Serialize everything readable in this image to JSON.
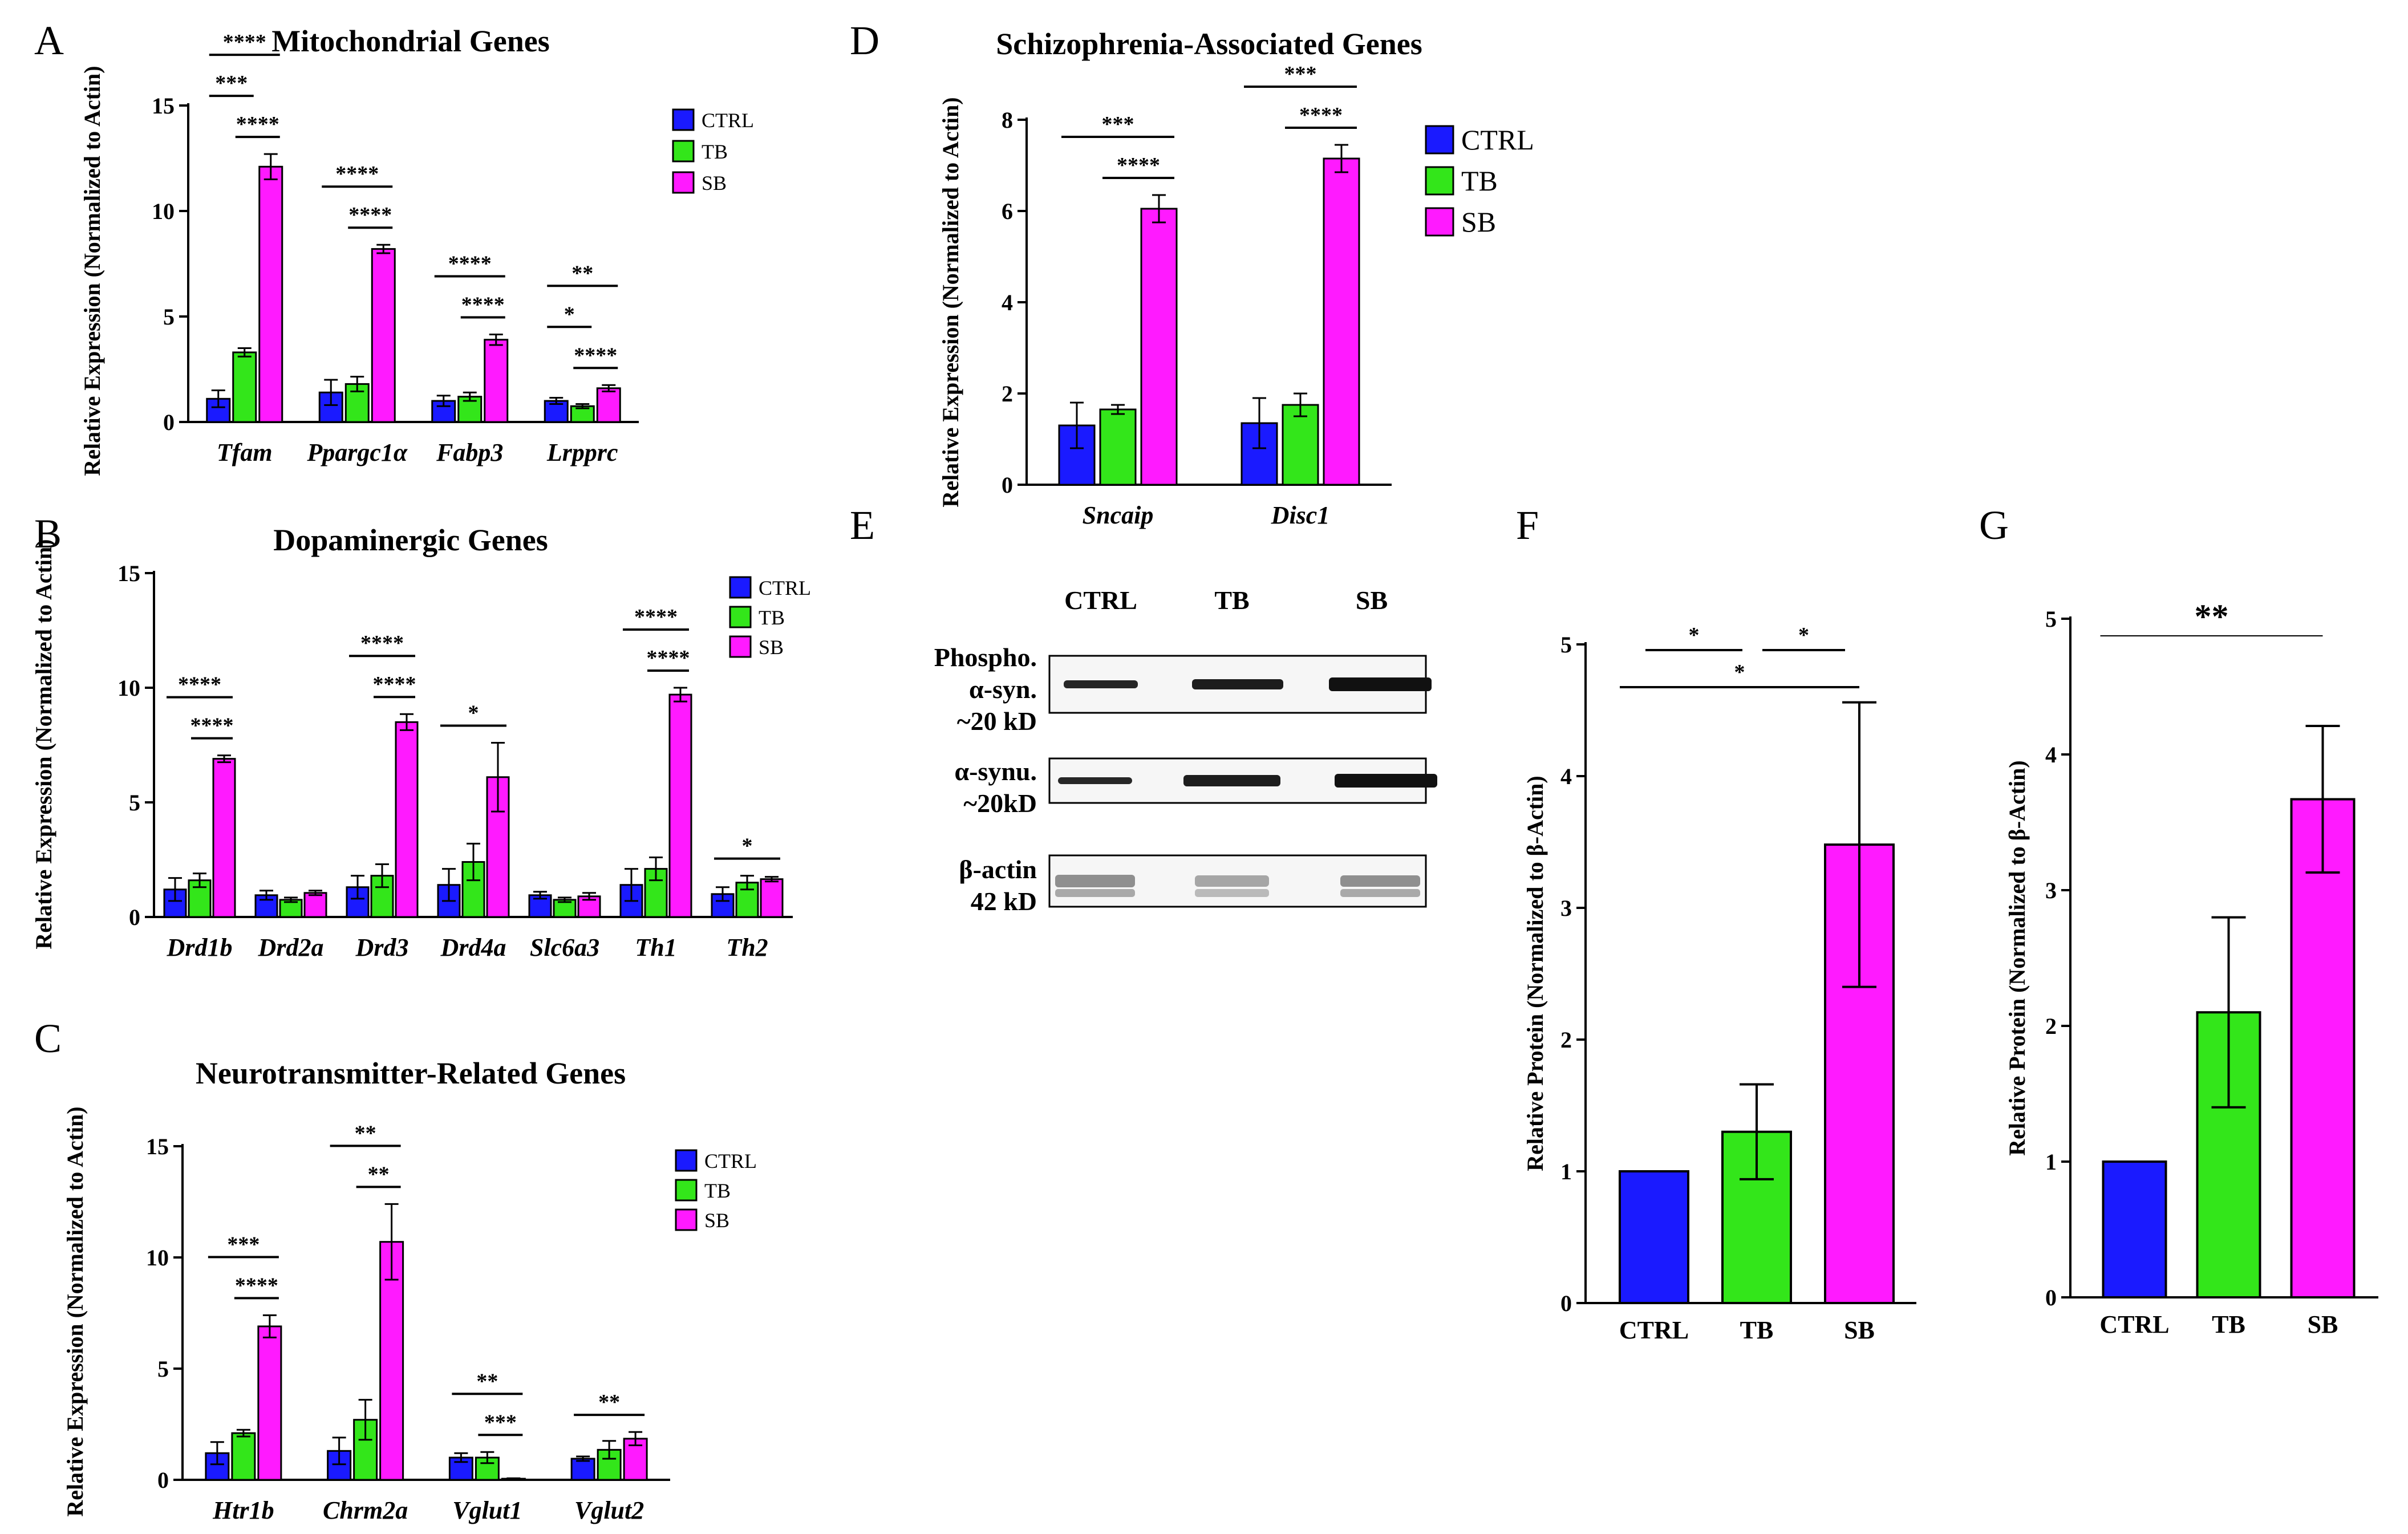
{
  "colors": {
    "CTRL": "#1a1aff",
    "TB": "#33e61a",
    "SB": "#ff1aff"
  },
  "panels": {
    "A": "A",
    "B": "B",
    "C": "C",
    "D": "D",
    "E": "E",
    "F": "F",
    "G": "G"
  },
  "chart_data": [
    {
      "id": "A",
      "type": "bar",
      "title": "Mitochondrial Genes",
      "ylabel": "Relative Expression (Normalized to Actin)",
      "ylim": [
        0,
        15
      ],
      "yticks": [
        0,
        5,
        10,
        15
      ],
      "categories": [
        "Tfam",
        "Ppargc1α",
        "Fabp3",
        "Lrpprc"
      ],
      "series": [
        {
          "name": "CTRL",
          "values": [
            1.1,
            1.4,
            1.0,
            1.0
          ],
          "errors": [
            0.4,
            0.6,
            0.25,
            0.15
          ]
        },
        {
          "name": "TB",
          "values": [
            3.3,
            1.8,
            1.2,
            0.75
          ],
          "errors": [
            0.2,
            0.35,
            0.2,
            0.1
          ]
        },
        {
          "name": "SB",
          "values": [
            12.1,
            8.2,
            3.9,
            1.6
          ],
          "errors": [
            0.6,
            0.2,
            0.25,
            0.15
          ]
        }
      ],
      "significance": [
        {
          "category": 0,
          "from": 0,
          "to": 2,
          "label": "****"
        },
        {
          "category": 0,
          "from": 1,
          "to": 2,
          "label": "****"
        },
        {
          "category": 0,
          "from": 0,
          "to": 1,
          "label": "***"
        },
        {
          "category": 1,
          "from": 0,
          "to": 2,
          "label": "****"
        },
        {
          "category": 1,
          "from": 1,
          "to": 2,
          "label": "****"
        },
        {
          "category": 2,
          "from": 0,
          "to": 2,
          "label": "****"
        },
        {
          "category": 2,
          "from": 1,
          "to": 2,
          "label": "****"
        },
        {
          "category": 3,
          "from": 0,
          "to": 2,
          "label": "**"
        },
        {
          "category": 3,
          "from": 1,
          "to": 2,
          "label": "****"
        },
        {
          "category": 3,
          "from": 0,
          "to": 1,
          "label": "*"
        }
      ],
      "legend": [
        "CTRL",
        "TB",
        "SB"
      ]
    },
    {
      "id": "B",
      "type": "bar",
      "title": "Dopaminergic Genes",
      "ylabel": "Relative Expression (Normalized to Actin)",
      "ylim": [
        0,
        15
      ],
      "yticks": [
        0,
        5,
        10,
        15
      ],
      "categories": [
        "Drd1b",
        "Drd2a",
        "Drd3",
        "Drd4a",
        "Slc6a3",
        "Th1",
        "Th2"
      ],
      "series": [
        {
          "name": "CTRL",
          "values": [
            1.2,
            0.95,
            1.3,
            1.4,
            0.95,
            1.4,
            1.0
          ],
          "errors": [
            0.5,
            0.2,
            0.5,
            0.7,
            0.15,
            0.7,
            0.3
          ]
        },
        {
          "name": "TB",
          "values": [
            1.6,
            0.75,
            1.8,
            2.4,
            0.75,
            2.1,
            1.5
          ],
          "errors": [
            0.3,
            0.1,
            0.5,
            0.8,
            0.1,
            0.5,
            0.3
          ]
        },
        {
          "name": "SB",
          "values": [
            6.9,
            1.05,
            8.5,
            6.1,
            0.9,
            9.7,
            1.65
          ],
          "errors": [
            0.15,
            0.1,
            0.35,
            1.5,
            0.15,
            0.3,
            0.1
          ]
        }
      ],
      "significance": [
        {
          "category": 0,
          "from": 0,
          "to": 2,
          "label": "****"
        },
        {
          "category": 0,
          "from": 1,
          "to": 2,
          "label": "****"
        },
        {
          "category": 2,
          "from": 0,
          "to": 2,
          "label": "****"
        },
        {
          "category": 2,
          "from": 1,
          "to": 2,
          "label": "****"
        },
        {
          "category": 3,
          "from": 0,
          "to": 2,
          "label": "*"
        },
        {
          "category": 5,
          "from": 0,
          "to": 2,
          "label": "****"
        },
        {
          "category": 5,
          "from": 1,
          "to": 2,
          "label": "****"
        },
        {
          "category": 6,
          "from": 0,
          "to": 2,
          "label": "*"
        }
      ],
      "legend": [
        "CTRL",
        "TB",
        "SB"
      ]
    },
    {
      "id": "C",
      "type": "bar",
      "title": "Neurotransmitter-Related Genes",
      "ylabel": "Relative Expression (Normalized to Actin)",
      "ylim": [
        0,
        15
      ],
      "yticks": [
        0,
        5,
        10,
        15
      ],
      "categories": [
        "Htr1b",
        "Chrm2a",
        "Vglut1",
        "Vglut2"
      ],
      "series": [
        {
          "name": "CTRL",
          "values": [
            1.2,
            1.3,
            1.0,
            0.95
          ],
          "errors": [
            0.5,
            0.6,
            0.2,
            0.1
          ]
        },
        {
          "name": "TB",
          "values": [
            2.1,
            2.7,
            1.0,
            1.35
          ],
          "errors": [
            0.15,
            0.9,
            0.25,
            0.4
          ]
        },
        {
          "name": "SB",
          "values": [
            6.9,
            10.7,
            0.05,
            1.85
          ],
          "errors": [
            0.5,
            1.7,
            0.02,
            0.3
          ]
        }
      ],
      "significance": [
        {
          "category": 0,
          "from": 0,
          "to": 2,
          "label": "***"
        },
        {
          "category": 0,
          "from": 1,
          "to": 2,
          "label": "****"
        },
        {
          "category": 1,
          "from": 0,
          "to": 2,
          "label": "**"
        },
        {
          "category": 1,
          "from": 1,
          "to": 2,
          "label": "**"
        },
        {
          "category": 2,
          "from": 0,
          "to": 2,
          "label": "**"
        },
        {
          "category": 2,
          "from": 1,
          "to": 2,
          "label": "***"
        },
        {
          "category": 3,
          "from": 0,
          "to": 2,
          "label": "**"
        }
      ],
      "legend": [
        "CTRL",
        "TB",
        "SB"
      ]
    },
    {
      "id": "D",
      "type": "bar",
      "title": "Schizophrenia-Associated Genes",
      "ylabel": "Relative Expression (Normalized to Actin)",
      "ylim": [
        0,
        8
      ],
      "yticks": [
        0,
        2,
        4,
        6,
        8
      ],
      "categories": [
        "Sncaip",
        "Disc1"
      ],
      "series": [
        {
          "name": "CTRL",
          "values": [
            1.3,
            1.35
          ],
          "errors": [
            0.5,
            0.55
          ]
        },
        {
          "name": "TB",
          "values": [
            1.65,
            1.75
          ],
          "errors": [
            0.1,
            0.25
          ]
        },
        {
          "name": "SB",
          "values": [
            6.05,
            7.15
          ],
          "errors": [
            0.3,
            0.3
          ]
        }
      ],
      "significance": [
        {
          "category": 0,
          "from": 0,
          "to": 2,
          "label": "***"
        },
        {
          "category": 0,
          "from": 1,
          "to": 2,
          "label": "****"
        },
        {
          "category": 1,
          "from": 0,
          "to": 2,
          "label": "***"
        },
        {
          "category": 1,
          "from": 1,
          "to": 2,
          "label": "****"
        }
      ],
      "legend": [
        "CTRL",
        "TB",
        "SB"
      ]
    },
    {
      "id": "F",
      "type": "bar",
      "ylabel": "Relative Protein (Normalized to β-Actin)",
      "ylim": [
        0,
        5
      ],
      "yticks": [
        0,
        1,
        2,
        3,
        4,
        5
      ],
      "categories": [
        "CTRL",
        "TB",
        "SB"
      ],
      "values": [
        1.0,
        1.3,
        3.48
      ],
      "errors": [
        0,
        0.36,
        1.08
      ],
      "significance": [
        {
          "from": 0,
          "to": 1,
          "label": "*"
        },
        {
          "from": 1,
          "to": 2,
          "label": "*"
        },
        {
          "from": 0,
          "to": 2,
          "label": "*"
        }
      ]
    },
    {
      "id": "G",
      "type": "bar",
      "ylabel": "Relative Protein (Normalized to β-Actin)",
      "ylim": [
        0,
        5
      ],
      "yticks": [
        0,
        1,
        2,
        3,
        4,
        5
      ],
      "categories": [
        "CTRL",
        "TB",
        "SB"
      ],
      "values": [
        1.0,
        2.1,
        3.67
      ],
      "errors": [
        0,
        0.7,
        0.54
      ],
      "significance": [
        {
          "from": 0,
          "to": 2,
          "label": "**"
        }
      ]
    }
  ],
  "blot": {
    "lanes": [
      "CTRL",
      "TB",
      "SB"
    ],
    "rows": [
      {
        "lines": [
          "Phospho.",
          "α-syn.",
          "~20 kD"
        ]
      },
      {
        "lines": [
          "α-synu.",
          "~20kD"
        ]
      },
      {
        "lines": [
          "β-actin",
          "42 kD"
        ]
      }
    ]
  }
}
